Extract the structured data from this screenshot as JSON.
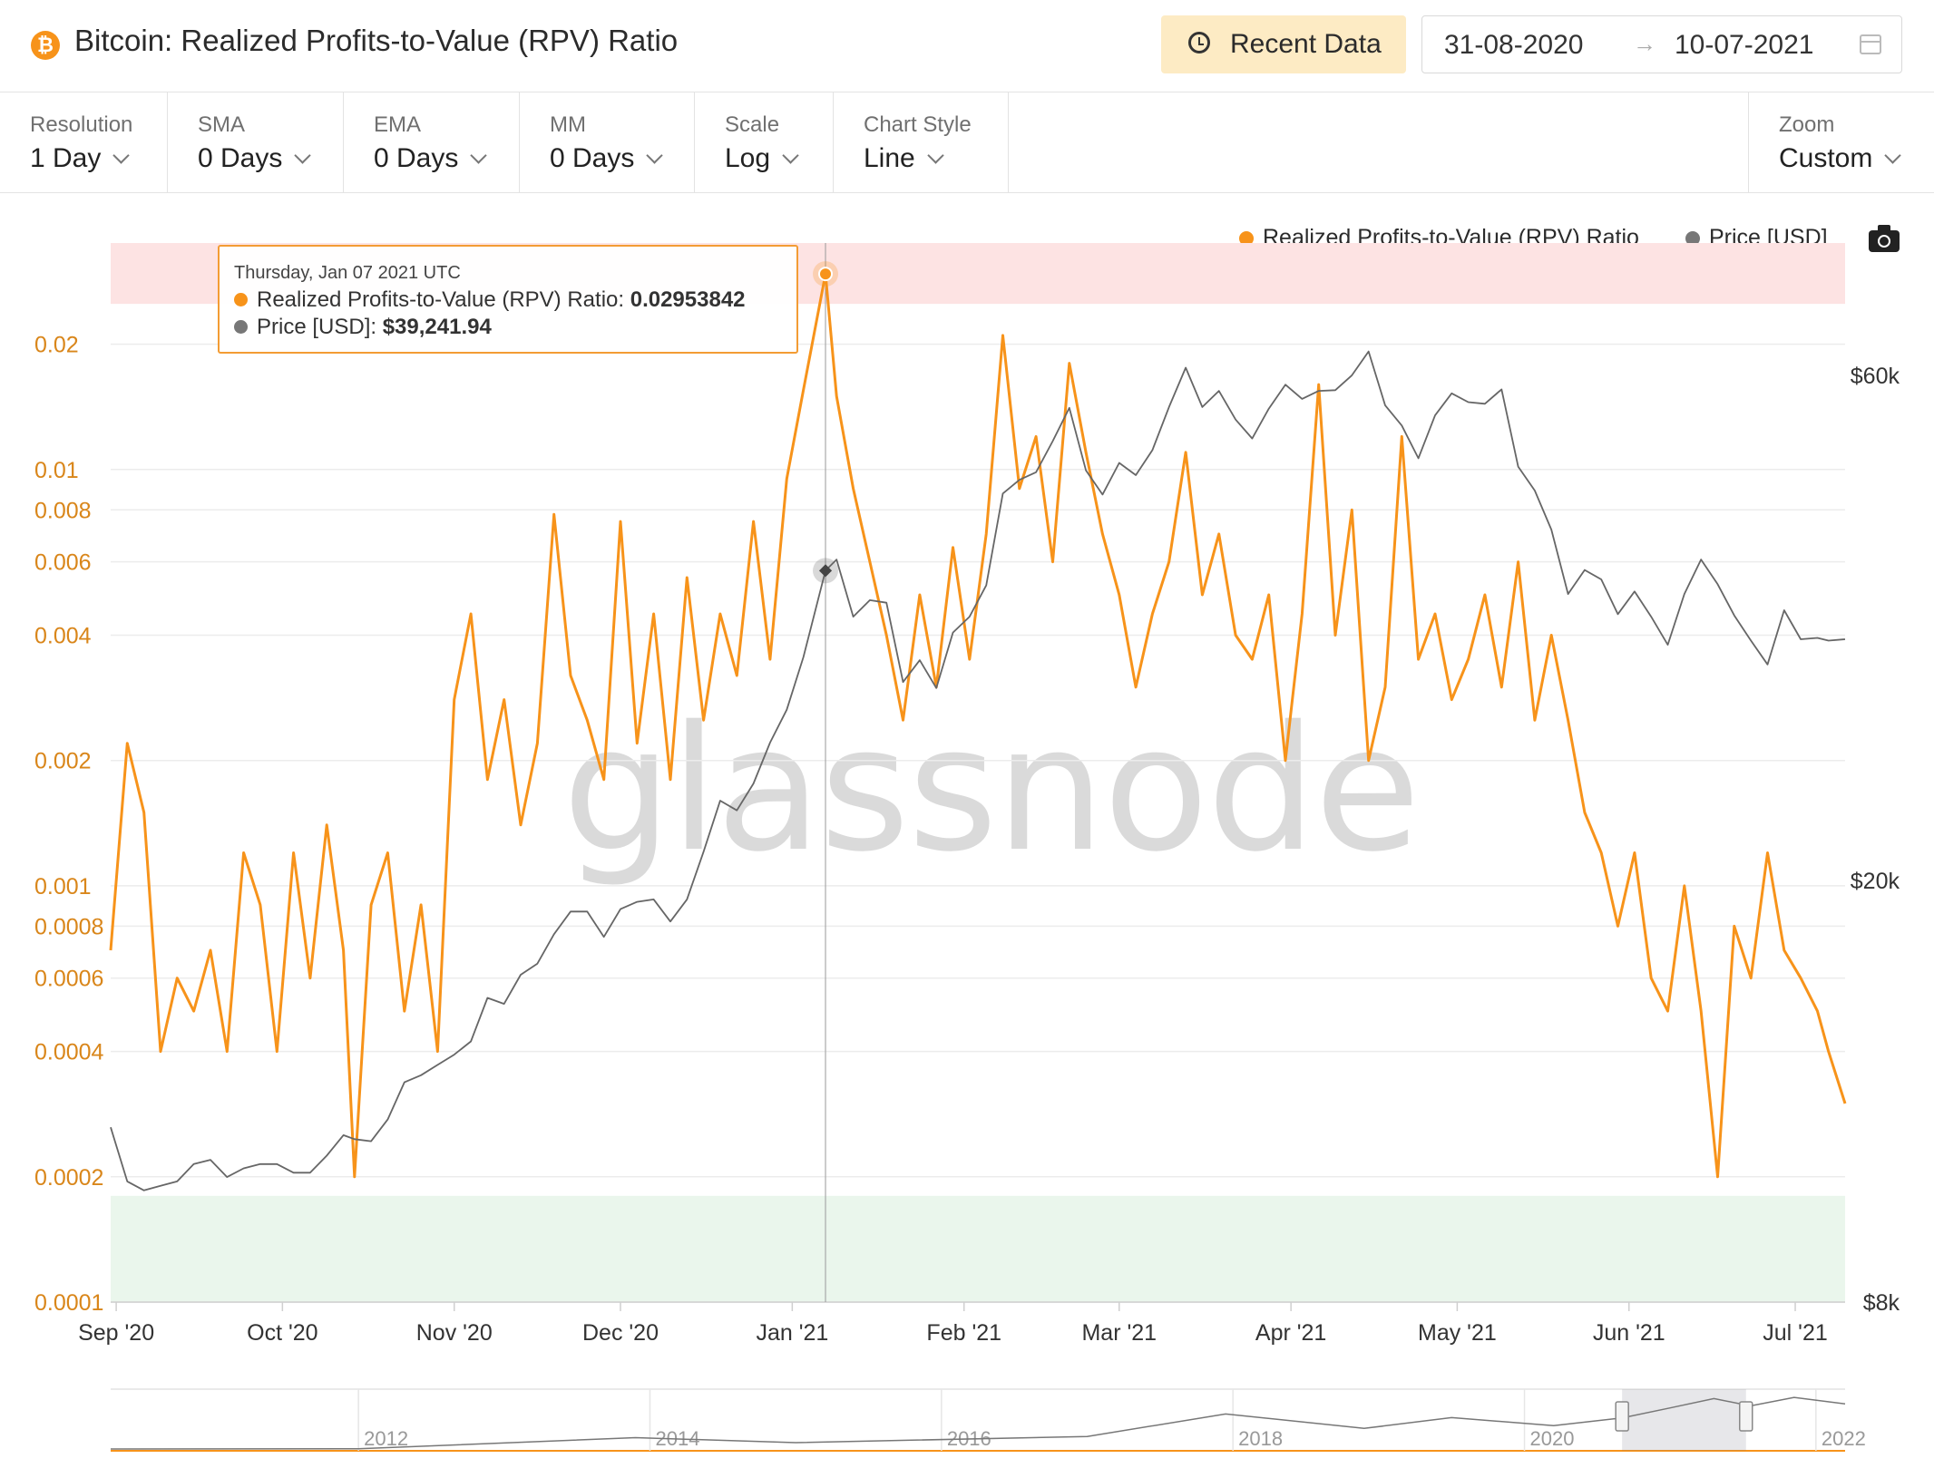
{
  "header": {
    "title": "Bitcoin: Realized Profits-to-Value (RPV) Ratio",
    "coin_symbol": "₿",
    "recent_label": "Recent Data",
    "date_start": "31-08-2020",
    "date_arrow": "→",
    "date_end": "10-07-2021"
  },
  "controls": [
    {
      "label": "Resolution",
      "value": "1 Day"
    },
    {
      "label": "SMA",
      "value": "0 Days"
    },
    {
      "label": "EMA",
      "value": "0 Days"
    },
    {
      "label": "MM",
      "value": "0 Days"
    },
    {
      "label": "Scale",
      "value": "Log"
    },
    {
      "label": "Chart Style",
      "value": "Line"
    }
  ],
  "zoom": {
    "label": "Zoom",
    "value": "Custom"
  },
  "legend": [
    {
      "name": "Realized Profits-to-Value (RPV) Ratio",
      "color": "#f7931a"
    },
    {
      "name": "Price [USD]",
      "color": "#777777"
    }
  ],
  "tooltip": {
    "date": "Thursday, Jan 07 2021 UTC",
    "rpv_label": "Realized Profits-to-Value (RPV) Ratio:",
    "rpv_value": "0.02953842",
    "price_label": "Price [USD]:",
    "price_value": "$39,241.94"
  },
  "watermark": "glassnode",
  "colors": {
    "rpv": "#f7931a",
    "price": "#666666",
    "high_band": "#fde3e3",
    "low_band": "#eaf6ec",
    "tooltip_border": "#f39c34"
  },
  "chart_data": {
    "type": "line",
    "x_tick_labels": [
      "Sep '20",
      "Oct '20",
      "Nov '20",
      "Dec '20",
      "Jan '21",
      "Feb '21",
      "Mar '21",
      "Apr '21",
      "May '21",
      "Jun '21",
      "Jul '21"
    ],
    "y_left_ticks": [
      "0.02",
      "0.01",
      "0.008",
      "0.006",
      "0.004",
      "0.002",
      "0.001",
      "0.0008",
      "0.0006",
      "0.0004",
      "0.0002",
      "0.0001"
    ],
    "y_left_values": [
      0.02,
      0.01,
      0.008,
      0.006,
      0.004,
      0.002,
      0.001,
      0.0008,
      0.0006,
      0.0004,
      0.0002,
      0.0001
    ],
    "y_left_scale": "log",
    "y_left_range": [
      0.0001,
      0.035
    ],
    "y_right_ticks": [
      "$60k",
      "$20k",
      "$8k"
    ],
    "y_right_values": [
      60000,
      20000,
      8000
    ],
    "y_right_scale": "log",
    "y_right_range": [
      8000,
      80000
    ],
    "x_range": [
      "2020-08-31",
      "2021-07-10"
    ],
    "bands": {
      "high": [
        0.025,
        0.035
      ],
      "low": [
        0.0001,
        0.00018
      ]
    },
    "crosshair_date": "2021-01-07",
    "series": [
      {
        "name": "Realized Profits-to-Value (RPV) Ratio",
        "color": "#f7931a",
        "points": [
          [
            "2020-08-31",
            0.0007
          ],
          [
            "2020-09-03",
            0.0022
          ],
          [
            "2020-09-06",
            0.0015
          ],
          [
            "2020-09-09",
            0.0004
          ],
          [
            "2020-09-12",
            0.0006
          ],
          [
            "2020-09-15",
            0.0005
          ],
          [
            "2020-09-18",
            0.0007
          ],
          [
            "2020-09-21",
            0.0004
          ],
          [
            "2020-09-24",
            0.0012
          ],
          [
            "2020-09-27",
            0.0009
          ],
          [
            "2020-09-30",
            0.0004
          ],
          [
            "2020-10-03",
            0.0012
          ],
          [
            "2020-10-06",
            0.0006
          ],
          [
            "2020-10-09",
            0.0014
          ],
          [
            "2020-10-12",
            0.0007
          ],
          [
            "2020-10-14",
            0.0002
          ],
          [
            "2020-10-17",
            0.0009
          ],
          [
            "2020-10-20",
            0.0012
          ],
          [
            "2020-10-23",
            0.0005
          ],
          [
            "2020-10-26",
            0.0009
          ],
          [
            "2020-10-29",
            0.0004
          ],
          [
            "2020-11-01",
            0.0028
          ],
          [
            "2020-11-04",
            0.0045
          ],
          [
            "2020-11-07",
            0.0018
          ],
          [
            "2020-11-10",
            0.0028
          ],
          [
            "2020-11-13",
            0.0014
          ],
          [
            "2020-11-16",
            0.0022
          ],
          [
            "2020-11-19",
            0.0078
          ],
          [
            "2020-11-22",
            0.0032
          ],
          [
            "2020-11-25",
            0.0025
          ],
          [
            "2020-11-28",
            0.0018
          ],
          [
            "2020-12-01",
            0.0075
          ],
          [
            "2020-12-04",
            0.0022
          ],
          [
            "2020-12-07",
            0.0045
          ],
          [
            "2020-12-10",
            0.0018
          ],
          [
            "2020-12-13",
            0.0055
          ],
          [
            "2020-12-16",
            0.0025
          ],
          [
            "2020-12-19",
            0.0045
          ],
          [
            "2020-12-22",
            0.0032
          ],
          [
            "2020-12-25",
            0.0075
          ],
          [
            "2020-12-28",
            0.0035
          ],
          [
            "2020-12-31",
            0.0095
          ],
          [
            "2021-01-03",
            0.0155
          ],
          [
            "2021-01-07",
            0.0295
          ],
          [
            "2021-01-09",
            0.015
          ],
          [
            "2021-01-12",
            0.009
          ],
          [
            "2021-01-15",
            0.006
          ],
          [
            "2021-01-18",
            0.004
          ],
          [
            "2021-01-21",
            0.0025
          ],
          [
            "2021-01-24",
            0.005
          ],
          [
            "2021-01-27",
            0.003
          ],
          [
            "2021-01-30",
            0.0065
          ],
          [
            "2021-02-02",
            0.0035
          ],
          [
            "2021-02-05",
            0.007
          ],
          [
            "2021-02-08",
            0.021
          ],
          [
            "2021-02-11",
            0.009
          ],
          [
            "2021-02-14",
            0.012
          ],
          [
            "2021-02-17",
            0.006
          ],
          [
            "2021-02-20",
            0.018
          ],
          [
            "2021-02-23",
            0.011
          ],
          [
            "2021-02-26",
            0.007
          ],
          [
            "2021-03-01",
            0.005
          ],
          [
            "2021-03-04",
            0.003
          ],
          [
            "2021-03-07",
            0.0045
          ],
          [
            "2021-03-10",
            0.006
          ],
          [
            "2021-03-13",
            0.011
          ],
          [
            "2021-03-16",
            0.005
          ],
          [
            "2021-03-19",
            0.007
          ],
          [
            "2021-03-22",
            0.004
          ],
          [
            "2021-03-25",
            0.0035
          ],
          [
            "2021-03-28",
            0.005
          ],
          [
            "2021-03-31",
            0.002
          ],
          [
            "2021-04-03",
            0.0045
          ],
          [
            "2021-04-06",
            0.016
          ],
          [
            "2021-04-09",
            0.004
          ],
          [
            "2021-04-12",
            0.008
          ],
          [
            "2021-04-15",
            0.002
          ],
          [
            "2021-04-18",
            0.003
          ],
          [
            "2021-04-21",
            0.012
          ],
          [
            "2021-04-24",
            0.0035
          ],
          [
            "2021-04-27",
            0.0045
          ],
          [
            "2021-04-30",
            0.0028
          ],
          [
            "2021-05-03",
            0.0035
          ],
          [
            "2021-05-06",
            0.005
          ],
          [
            "2021-05-09",
            0.003
          ],
          [
            "2021-05-12",
            0.006
          ],
          [
            "2021-05-15",
            0.0025
          ],
          [
            "2021-05-18",
            0.004
          ],
          [
            "2021-05-21",
            0.0025
          ],
          [
            "2021-05-24",
            0.0015
          ],
          [
            "2021-05-27",
            0.0012
          ],
          [
            "2021-05-30",
            0.0008
          ],
          [
            "2021-06-02",
            0.0012
          ],
          [
            "2021-06-05",
            0.0006
          ],
          [
            "2021-06-08",
            0.0005
          ],
          [
            "2021-06-11",
            0.001
          ],
          [
            "2021-06-14",
            0.0005
          ],
          [
            "2021-06-17",
            0.0002
          ],
          [
            "2021-06-20",
            0.0008
          ],
          [
            "2021-06-23",
            0.0006
          ],
          [
            "2021-06-26",
            0.0012
          ],
          [
            "2021-06-29",
            0.0007
          ],
          [
            "2021-07-02",
            0.0006
          ],
          [
            "2021-07-05",
            0.0005
          ],
          [
            "2021-07-07",
            0.0004
          ],
          [
            "2021-07-10",
            0.0003
          ]
        ]
      },
      {
        "name": "Price [USD]",
        "color": "#666666",
        "points": [
          [
            "2020-08-31",
            11700
          ],
          [
            "2020-09-03",
            10400
          ],
          [
            "2020-09-06",
            10200
          ],
          [
            "2020-09-09",
            10300
          ],
          [
            "2020-09-12",
            10400
          ],
          [
            "2020-09-15",
            10800
          ],
          [
            "2020-09-18",
            10900
          ],
          [
            "2020-09-21",
            10500
          ],
          [
            "2020-09-24",
            10700
          ],
          [
            "2020-09-27",
            10800
          ],
          [
            "2020-09-30",
            10800
          ],
          [
            "2020-10-03",
            10600
          ],
          [
            "2020-10-06",
            10600
          ],
          [
            "2020-10-09",
            11000
          ],
          [
            "2020-10-12",
            11500
          ],
          [
            "2020-10-14",
            11400
          ],
          [
            "2020-10-17",
            11350
          ],
          [
            "2020-10-20",
            11900
          ],
          [
            "2020-10-23",
            12900
          ],
          [
            "2020-10-26",
            13100
          ],
          [
            "2020-10-29",
            13400
          ],
          [
            "2020-11-01",
            13700
          ],
          [
            "2020-11-04",
            14100
          ],
          [
            "2020-11-07",
            15500
          ],
          [
            "2020-11-10",
            15300
          ],
          [
            "2020-11-13",
            16300
          ],
          [
            "2020-11-16",
            16700
          ],
          [
            "2020-11-19",
            17800
          ],
          [
            "2020-11-22",
            18700
          ],
          [
            "2020-11-25",
            18700
          ],
          [
            "2020-11-28",
            17700
          ],
          [
            "2020-12-01",
            18800
          ],
          [
            "2020-12-04",
            19100
          ],
          [
            "2020-12-07",
            19200
          ],
          [
            "2020-12-10",
            18300
          ],
          [
            "2020-12-13",
            19200
          ],
          [
            "2020-12-16",
            21300
          ],
          [
            "2020-12-19",
            23800
          ],
          [
            "2020-12-22",
            23300
          ],
          [
            "2020-12-25",
            24700
          ],
          [
            "2020-12-28",
            27000
          ],
          [
            "2020-12-31",
            29000
          ],
          [
            "2021-01-03",
            32500
          ],
          [
            "2021-01-07",
            39241
          ],
          [
            "2021-01-09",
            40200
          ],
          [
            "2021-01-12",
            35500
          ],
          [
            "2021-01-15",
            36800
          ],
          [
            "2021-01-18",
            36600
          ],
          [
            "2021-01-21",
            30800
          ],
          [
            "2021-01-24",
            32300
          ],
          [
            "2021-01-27",
            30400
          ],
          [
            "2021-01-30",
            34300
          ],
          [
            "2021-02-02",
            35500
          ],
          [
            "2021-02-05",
            38000
          ],
          [
            "2021-02-08",
            46400
          ],
          [
            "2021-02-11",
            47800
          ],
          [
            "2021-02-14",
            48600
          ],
          [
            "2021-02-17",
            52000
          ],
          [
            "2021-02-20",
            55900
          ],
          [
            "2021-02-23",
            48800
          ],
          [
            "2021-02-26",
            46300
          ],
          [
            "2021-03-01",
            49600
          ],
          [
            "2021-03-04",
            48300
          ],
          [
            "2021-03-07",
            51000
          ],
          [
            "2021-03-10",
            56000
          ],
          [
            "2021-03-13",
            61000
          ],
          [
            "2021-03-16",
            56000
          ],
          [
            "2021-03-19",
            58000
          ],
          [
            "2021-03-22",
            54500
          ],
          [
            "2021-03-25",
            52300
          ],
          [
            "2021-03-28",
            55800
          ],
          [
            "2021-03-31",
            58800
          ],
          [
            "2021-04-03",
            57000
          ],
          [
            "2021-04-06",
            58000
          ],
          [
            "2021-04-09",
            58100
          ],
          [
            "2021-04-12",
            60000
          ],
          [
            "2021-04-15",
            63200
          ],
          [
            "2021-04-18",
            56200
          ],
          [
            "2021-04-21",
            53800
          ],
          [
            "2021-04-24",
            50100
          ],
          [
            "2021-04-27",
            55000
          ],
          [
            "2021-04-30",
            57700
          ],
          [
            "2021-05-03",
            56600
          ],
          [
            "2021-05-06",
            56400
          ],
          [
            "2021-05-09",
            58200
          ],
          [
            "2021-05-12",
            49200
          ],
          [
            "2021-05-15",
            46700
          ],
          [
            "2021-05-18",
            42900
          ],
          [
            "2021-05-21",
            37300
          ],
          [
            "2021-05-24",
            39300
          ],
          [
            "2021-05-27",
            38500
          ],
          [
            "2021-05-30",
            35700
          ],
          [
            "2021-06-02",
            37500
          ],
          [
            "2021-06-05",
            35500
          ],
          [
            "2021-06-08",
            33400
          ],
          [
            "2021-06-11",
            37300
          ],
          [
            "2021-06-14",
            40200
          ],
          [
            "2021-06-17",
            38100
          ],
          [
            "2021-06-20",
            35600
          ],
          [
            "2021-06-23",
            33700
          ],
          [
            "2021-06-26",
            32000
          ],
          [
            "2021-06-29",
            36000
          ],
          [
            "2021-07-02",
            33800
          ],
          [
            "2021-07-05",
            33900
          ],
          [
            "2021-07-07",
            33700
          ],
          [
            "2021-07-10",
            33800
          ]
        ]
      }
    ],
    "navigator": {
      "x_tick_labels": [
        "2012",
        "2014",
        "2016",
        "2018",
        "2020",
        "2022"
      ]
    }
  }
}
